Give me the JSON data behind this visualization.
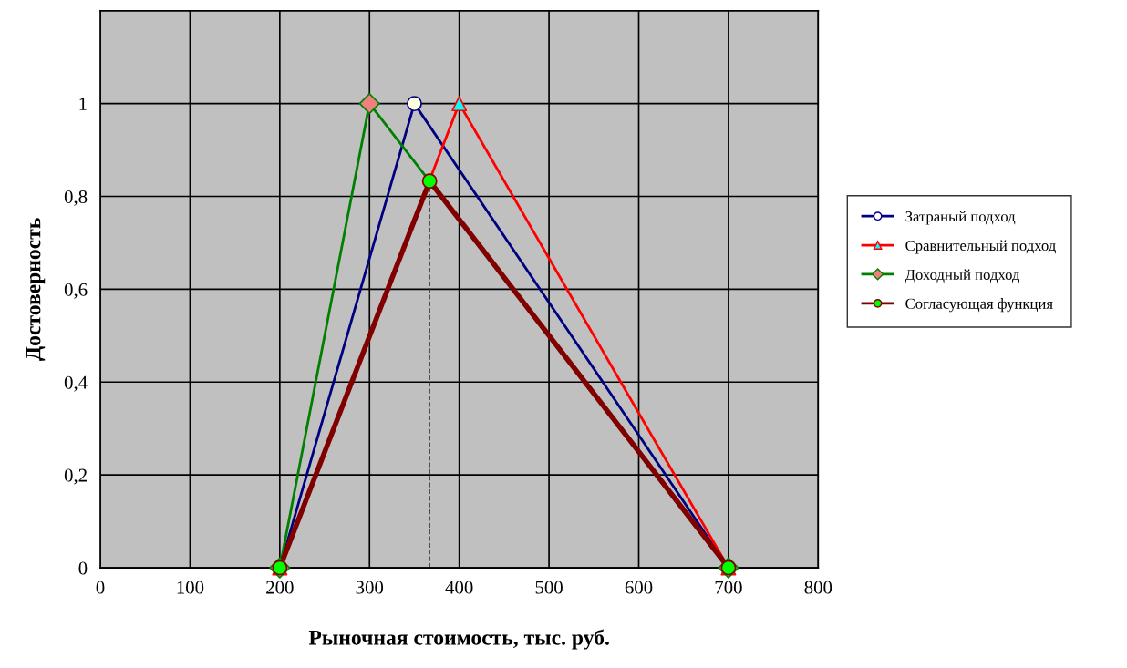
{
  "chart_data": {
    "type": "line",
    "xlabel": "Рыночная стоимость, тыс. руб.",
    "ylabel": "Достоверность",
    "xlim": [
      0,
      800
    ],
    "xticks": [
      0,
      100,
      200,
      300,
      400,
      500,
      600,
      700,
      800
    ],
    "ylim": [
      0,
      1.2
    ],
    "yticks": [
      0,
      {
        "value": 0.2,
        "label": "0,2"
      },
      {
        "value": 0.4,
        "label": "0,4"
      },
      {
        "value": 0.6,
        "label": "0,6"
      },
      {
        "value": 0.8,
        "label": "0,8"
      },
      1,
      {
        "value": 1.2,
        "label": null
      }
    ],
    "grid": true,
    "legend": "right",
    "series": [
      {
        "name": "Затраный подход",
        "color": "#000080",
        "x": [
          200,
          350,
          700
        ],
        "values": [
          0,
          1,
          0
        ],
        "marker": "circle",
        "colors": [
          "#ffffff",
          "#ffffe0",
          "#ffffff"
        ]
      },
      {
        "name": "Сравнительный подход",
        "color": "#ff0000",
        "x": [
          200,
          400,
          700
        ],
        "values": [
          0,
          1,
          0
        ],
        "marker": "triangle",
        "colors": [
          "#00ffff",
          "#00ffff",
          "#00ffff"
        ]
      },
      {
        "name": "Доходный подход",
        "color": "#008000",
        "x": [
          200,
          300,
          700
        ],
        "values": [
          0,
          1,
          0
        ],
        "marker": "diamond",
        "colors": [
          "#f08080",
          "#f08080",
          "#f08080"
        ]
      },
      {
        "name": "Согласующая функция",
        "color": "#800000",
        "x": [
          200,
          367,
          700
        ],
        "values": [
          0,
          0.833,
          0
        ],
        "marker": "circle",
        "colors": [
          "#00ff00",
          "#00ff00",
          "#00ff00"
        ]
      },
      {
        "color": "#404040",
        "x": [
          367,
          367
        ],
        "values": [
          0,
          0.833
        ],
        "marker": "none",
        "line_style": "dashed"
      }
    ]
  }
}
